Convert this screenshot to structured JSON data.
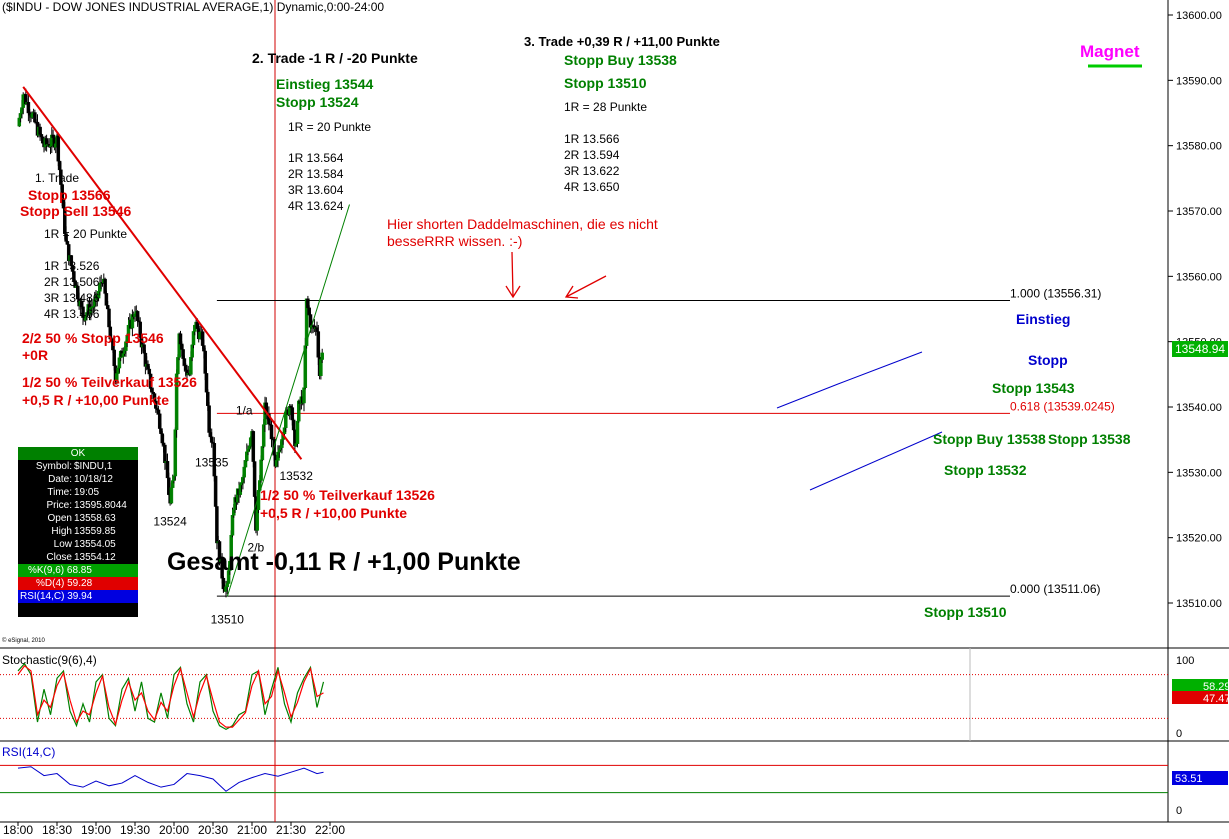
{
  "header": {
    "title": "($INDU - DOW JONES INDUSTRIAL AVERAGE,1) Dynamic,0:00-24:00",
    "copyright": "© eSignal, 2010"
  },
  "colors": {
    "up": "#008000",
    "down": "#ff0000",
    "trend": "#e00000",
    "fib": "#000000",
    "channel_blue": "#0000cc",
    "channel_green": "#008000",
    "stoch_k": "#008000",
    "stoch_d": "#ff0000",
    "rsi": "#0000cc",
    "magnet": "#ff00ff"
  },
  "info_box": {
    "status": "OK",
    "rows": [
      {
        "k": "Symbol:",
        "v": "$INDU,1"
      },
      {
        "k": "Date:",
        "v": "10/18/12"
      },
      {
        "k": "Time:",
        "v": "19:05"
      },
      {
        "k": "Price:",
        "v": "13595.8044"
      },
      {
        "k": "Open",
        "v": "13558.63"
      },
      {
        "k": "High",
        "v": "13559.85"
      },
      {
        "k": "Low",
        "v": "13554.05"
      },
      {
        "k": "Close",
        "v": "13554.12"
      }
    ],
    "stoch_k": "%K(9,6) 68.85",
    "stoch_d": "%D(4) 59.28",
    "rsi": "RSI(14,C) 39.94"
  },
  "chart_data": [
    {
      "type": "candlestick",
      "y_ticks": [
        "13600.00",
        "13590.00",
        "13580.00",
        "13570.00",
        "13560.00",
        "13550.00",
        "13540.00",
        "13530.00",
        "13520.00",
        "13510.00"
      ],
      "ylim": [
        13506,
        13606
      ],
      "x_ticks": [
        "18:00",
        "18:30",
        "19:00",
        "19:30",
        "20:00",
        "20:30",
        "21:00",
        "21:30",
        "22:00"
      ],
      "current_price_label": "13548.94",
      "key_points": [
        {
          "t": "18:00",
          "price": 13583
        },
        {
          "t": "18:04",
          "price": 13588
        },
        {
          "t": "18:20",
          "price": 13580
        },
        {
          "t": "18:30",
          "price": 13581
        },
        {
          "t": "18:37",
          "price": 13565
        },
        {
          "t": "18:50",
          "price": 13554
        },
        {
          "t": "19:00",
          "price": 13556
        },
        {
          "t": "19:05",
          "price": 13560
        },
        {
          "t": "19:15",
          "price": 13545
        },
        {
          "t": "19:30",
          "price": 13555
        },
        {
          "t": "19:40",
          "price": 13545
        },
        {
          "t": "19:50",
          "price": 13537
        },
        {
          "t": "19:55",
          "price": 13529
        },
        {
          "t": "19:57",
          "price": 13525
        },
        {
          "t": "20:00",
          "price": 13530
        },
        {
          "t": "20:02",
          "price": 13545
        },
        {
          "t": "20:04",
          "price": 13552
        },
        {
          "t": "20:08",
          "price": 13546
        },
        {
          "t": "20:12",
          "price": 13545
        },
        {
          "t": "20:16",
          "price": 13553
        },
        {
          "t": "20:22",
          "price": 13550
        },
        {
          "t": "20:25",
          "price": 13543
        },
        {
          "t": "20:27",
          "price": 13537
        },
        {
          "t": "20:30",
          "price": 13535
        },
        {
          "t": "20:33",
          "price": 13520
        },
        {
          "t": "20:38",
          "price": 13513
        },
        {
          "t": "20:41",
          "price": 13512
        },
        {
          "t": "20:46",
          "price": 13525
        },
        {
          "t": "20:52",
          "price": 13528
        },
        {
          "t": "21:00",
          "price": 13537
        },
        {
          "t": "21:03",
          "price": 13522
        },
        {
          "t": "21:07",
          "price": 13531
        },
        {
          "t": "21:10",
          "price": 13540
        },
        {
          "t": "21:15",
          "price": 13536
        },
        {
          "t": "21:18",
          "price": 13530
        },
        {
          "t": "21:24",
          "price": 13537
        },
        {
          "t": "21:30",
          "price": 13541
        },
        {
          "t": "21:33",
          "price": 13533
        },
        {
          "t": "21:36",
          "price": 13540
        },
        {
          "t": "21:40",
          "price": 13542
        },
        {
          "t": "21:42",
          "price": 13556
        },
        {
          "t": "21:46",
          "price": 13552
        },
        {
          "t": "21:50",
          "price": 13552
        },
        {
          "t": "21:52",
          "price": 13545
        },
        {
          "t": "21:54",
          "price": 13549
        }
      ],
      "price_labels": [
        {
          "text": "13524",
          "t": "19:57",
          "price": 13524
        },
        {
          "text": "13535",
          "t": "20:29",
          "price": 13533
        },
        {
          "text": "13510",
          "t": "20:41",
          "price": 13509
        },
        {
          "text": "2/b",
          "t": "21:03",
          "price": 13520
        },
        {
          "text": "1/a",
          "t": "20:54",
          "price": 13541
        },
        {
          "text": "13532",
          "t": "21:34",
          "price": 13531
        }
      ],
      "fibonacci": [
        {
          "label": "1.000 (13556.31)",
          "value": 13556.31
        },
        {
          "label": "0.618 (13539.0245)",
          "value": 13539.0245
        },
        {
          "label": "0.000 (13511.06)",
          "value": 13511.06
        }
      ],
      "trendlines": [
        {
          "name": "Downtrend",
          "from": {
            "t": "18:04",
            "price": 13589
          },
          "to": {
            "t": "21:38",
            "price": 13532
          }
        },
        {
          "name": "Uptrend",
          "from": {
            "t": "20:41",
            "price": 13511
          },
          "to": {
            "t": "22:15",
            "price": 13571
          }
        }
      ],
      "annotations": [
        {
          "text": "1. Trade",
          "color": "#000000",
          "bold": false
        },
        {
          "text": "Stopp 13566",
          "color": "#e00000"
        },
        {
          "text": "Stopp Sell 13546",
          "color": "#e00000"
        },
        {
          "text": "1R = 20 Punkte",
          "color": "#000000"
        },
        {
          "text": "1R 13.526",
          "color": "#000000"
        },
        {
          "text": "2R 13.506",
          "color": "#000000"
        },
        {
          "text": "3R 13.486",
          "color": "#000000"
        },
        {
          "text": "4R 13.466",
          "color": "#000000"
        },
        {
          "text": "2/2 50 % Stopp 13546",
          "color": "#e00000"
        },
        {
          "text": "+0R",
          "color": "#e00000"
        },
        {
          "text": "1/2 50 % Teilverkauf 13526",
          "color": "#e00000"
        },
        {
          "text": "+0,5 R / +10,00 Punkte",
          "color": "#e00000"
        },
        {
          "text": "2. Trade -1 R / -20 Punkte",
          "color": "#000000"
        },
        {
          "text": "Einstieg 13544",
          "color": "#008000"
        },
        {
          "text": "Stopp 13524",
          "color": "#008000"
        },
        {
          "text": "1R = 20 Punkte",
          "color": "#000000"
        },
        {
          "text": "1R 13.564",
          "color": "#000000"
        },
        {
          "text": "2R 13.584",
          "color": "#000000"
        },
        {
          "text": "3R 13.604",
          "color": "#000000"
        },
        {
          "text": "4R 13.624",
          "color": "#000000"
        },
        {
          "text": "1/2 50 % Teilverkauf 13526",
          "color": "#e00000"
        },
        {
          "text": "+0,5 R / +10,00 Punkte",
          "color": "#e00000"
        },
        {
          "text": "3. Trade +0,39 R / +11,00 Punkte",
          "color": "#000000"
        },
        {
          "text": "Stopp Buy 13538",
          "color": "#008000"
        },
        {
          "text": "Stopp 13510",
          "color": "#008000"
        },
        {
          "text": "1R = 28 Punkte",
          "color": "#000000"
        },
        {
          "text": "1R 13.566",
          "color": "#000000"
        },
        {
          "text": "2R 13.594",
          "color": "#000000"
        },
        {
          "text": "3R 13.622",
          "color": "#000000"
        },
        {
          "text": "4R 13.650",
          "color": "#000000"
        },
        {
          "text": "Hier shorten Daddelmaschinen, die es nicht",
          "color": "#e00000"
        },
        {
          "text": "besseRRR wissen. :-)",
          "color": "#e00000"
        },
        {
          "text": "Gesamt -0,11 R / +1,00 Punkte",
          "color": "#000000"
        },
        {
          "text": "Magnet",
          "color": "#ff00ff"
        },
        {
          "text": "Einstieg",
          "color": "#0000cc"
        },
        {
          "text": "Stopp",
          "color": "#0000cc"
        },
        {
          "text": "Stopp 13543",
          "color": "#008000"
        },
        {
          "text": "Stopp Buy 13538",
          "color": "#008000"
        },
        {
          "text": "Stopp 13538",
          "color": "#008000"
        },
        {
          "text": "Stopp 13532",
          "color": "#008000"
        },
        {
          "text": "Stopp 13510",
          "color": "#008000"
        }
      ]
    },
    {
      "type": "line",
      "title": "Stochastic(9(6),4)",
      "ylim": [
        0,
        100
      ],
      "y_ticks": [
        "100",
        "0"
      ],
      "reference_levels": [
        80,
        20
      ],
      "series": [
        {
          "name": "%K",
          "x": [
            "18:00",
            "18:05",
            "18:10",
            "18:15",
            "18:20",
            "18:25",
            "18:30",
            "18:35",
            "18:40",
            "18:45",
            "18:50",
            "18:55",
            "19:00",
            "19:05",
            "19:10",
            "19:15",
            "19:20",
            "19:25",
            "19:30",
            "19:35",
            "19:40",
            "19:45",
            "19:50",
            "19:55",
            "20:00",
            "20:05",
            "20:10",
            "20:15",
            "20:20",
            "20:25",
            "20:30",
            "20:35",
            "20:40",
            "20:45",
            "20:50",
            "20:55",
            "21:00",
            "21:05",
            "21:10",
            "21:15",
            "21:20",
            "21:25",
            "21:30",
            "21:35",
            "21:40",
            "21:45",
            "21:50",
            "21:55"
          ],
          "values": [
            85,
            95,
            80,
            15,
            60,
            25,
            75,
            85,
            30,
            10,
            40,
            15,
            70,
            80,
            20,
            10,
            60,
            75,
            30,
            70,
            20,
            15,
            55,
            20,
            80,
            90,
            40,
            15,
            70,
            80,
            30,
            10,
            5,
            10,
            25,
            30,
            80,
            85,
            25,
            60,
            90,
            40,
            15,
            55,
            75,
            90,
            35,
            70
          ]
        },
        {
          "name": "%D",
          "x": [
            "18:00",
            "18:05",
            "18:10",
            "18:15",
            "18:20",
            "18:25",
            "18:30",
            "18:35",
            "18:40",
            "18:45",
            "18:50",
            "18:55",
            "19:00",
            "19:05",
            "19:10",
            "19:15",
            "19:20",
            "19:25",
            "19:30",
            "19:35",
            "19:40",
            "19:45",
            "19:50",
            "19:55",
            "20:00",
            "20:05",
            "20:10",
            "20:15",
            "20:20",
            "20:25",
            "20:30",
            "20:35",
            "20:40",
            "20:45",
            "20:50",
            "20:55",
            "21:00",
            "21:05",
            "21:10",
            "21:15",
            "21:20",
            "21:25",
            "21:30",
            "21:35",
            "21:40",
            "21:45",
            "21:50",
            "21:55"
          ],
          "values": [
            80,
            92,
            85,
            25,
            45,
            35,
            65,
            82,
            45,
            15,
            30,
            25,
            55,
            78,
            35,
            12,
            45,
            70,
            45,
            55,
            30,
            18,
            42,
            30,
            65,
            88,
            55,
            22,
            55,
            78,
            45,
            15,
            8,
            8,
            18,
            28,
            65,
            85,
            40,
            50,
            85,
            55,
            22,
            42,
            70,
            88,
            50,
            55
          ]
        }
      ],
      "value_labels": [
        "58.29",
        "47.47"
      ]
    },
    {
      "type": "line",
      "title": "RSI(14,C)",
      "ylim": [
        0,
        100
      ],
      "y_ticks": [
        "0"
      ],
      "reference_levels": [
        70,
        30
      ],
      "series": [
        {
          "name": "RSI",
          "x": [
            "18:00",
            "18:10",
            "18:20",
            "18:30",
            "18:40",
            "18:50",
            "19:00",
            "19:10",
            "19:20",
            "19:30",
            "19:40",
            "19:50",
            "20:00",
            "20:10",
            "20:20",
            "20:30",
            "20:40",
            "20:50",
            "21:00",
            "21:10",
            "21:20",
            "21:30",
            "21:40",
            "21:50",
            "21:55"
          ],
          "values": [
            66,
            68,
            55,
            58,
            42,
            38,
            47,
            40,
            44,
            55,
            45,
            38,
            42,
            58,
            55,
            50,
            32,
            45,
            52,
            58,
            54,
            60,
            66,
            58,
            60
          ]
        }
      ],
      "value_labels": [
        "53.51"
      ]
    }
  ]
}
